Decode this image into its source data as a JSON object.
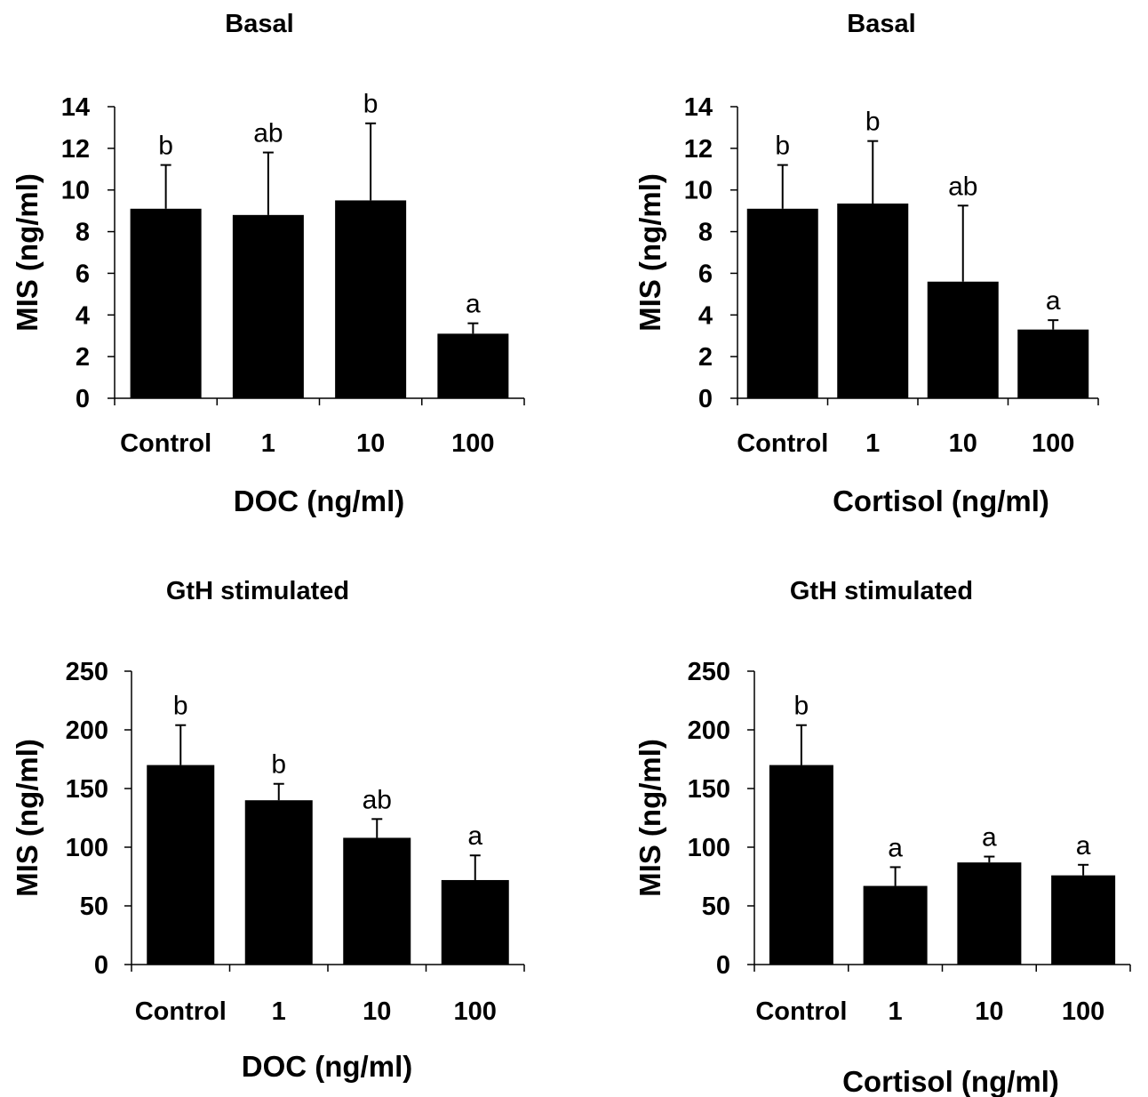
{
  "chart_data": [
    {
      "type": "bar",
      "title": "Basal",
      "xlabel": "DOC (ng/ml)",
      "ylabel": "MIS (ng/ml)",
      "categories": [
        "Control",
        "1",
        "10",
        "100"
      ],
      "values": [
        9.1,
        8.8,
        9.5,
        3.1
      ],
      "errors": [
        2.1,
        3.0,
        3.7,
        0.5
      ],
      "annotations": [
        "b",
        "ab",
        "b",
        "a"
      ],
      "ylim": [
        0,
        14
      ],
      "yticks": [
        "0",
        "2",
        "4",
        "6",
        "8",
        "10",
        "12",
        "14"
      ],
      "ytick_values": [
        0,
        2,
        4,
        6,
        8,
        10,
        12,
        14
      ],
      "bar_color": "#000000"
    },
    {
      "type": "bar",
      "title": "Basal",
      "xlabel": "Cortisol (ng/ml)",
      "ylabel": "MIS (ng/ml)",
      "categories": [
        "Control",
        "1",
        "10",
        "100"
      ],
      "values": [
        9.1,
        9.35,
        5.6,
        3.3
      ],
      "errors": [
        2.1,
        3.0,
        3.65,
        0.45
      ],
      "annotations": [
        "b",
        "b",
        "ab",
        "a"
      ],
      "ylim": [
        0,
        14
      ],
      "yticks": [
        "0",
        "2",
        "4",
        "6",
        "8",
        "10",
        "12",
        "14"
      ],
      "ytick_values": [
        0,
        2,
        4,
        6,
        8,
        10,
        12,
        14
      ],
      "bar_color": "#000000"
    },
    {
      "type": "bar",
      "title": "GtH stimulated",
      "xlabel": "DOC (ng/ml)",
      "ylabel": "MIS (ng/ml)",
      "categories": [
        "Control",
        "1",
        "10",
        "100"
      ],
      "values": [
        170,
        140,
        108,
        72
      ],
      "errors": [
        34,
        14,
        16,
        21
      ],
      "annotations": [
        "b",
        "b",
        "ab",
        "a"
      ],
      "ylim": [
        0,
        250
      ],
      "yticks": [
        "0",
        "50",
        "100",
        "150",
        "200",
        "250"
      ],
      "ytick_values": [
        0,
        50,
        100,
        150,
        200,
        250
      ],
      "bar_color": "#000000"
    },
    {
      "type": "bar",
      "title": "GtH stimulated",
      "xlabel": "Cortisol (ng/ml)",
      "ylabel": "MIS (ng/ml)",
      "categories": [
        "Control",
        "1",
        "10",
        "100"
      ],
      "values": [
        170,
        67,
        87,
        76
      ],
      "errors": [
        34,
        16,
        5,
        9
      ],
      "annotations": [
        "b",
        "a",
        "a",
        "a"
      ],
      "ylim": [
        0,
        250
      ],
      "yticks": [
        "0",
        "50",
        "100",
        "150",
        "200",
        "250"
      ],
      "ytick_values": [
        0,
        50,
        100,
        150,
        200,
        250
      ],
      "bar_color": "#000000"
    }
  ]
}
